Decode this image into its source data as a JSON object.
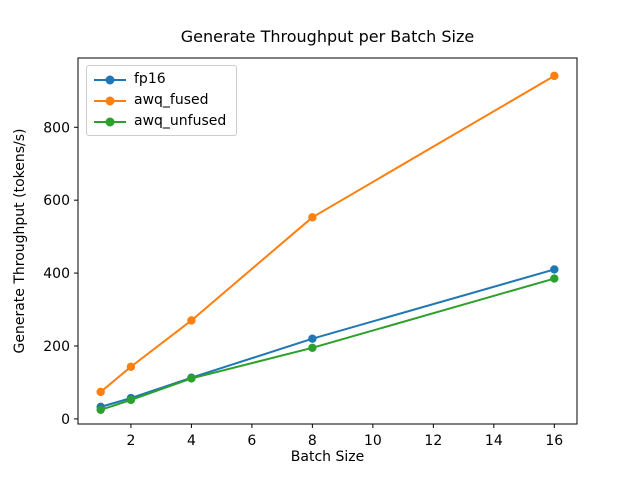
{
  "figure": {
    "background": "#ffffff"
  },
  "chart_data": {
    "type": "line",
    "title": "Generate Throughput per Batch Size",
    "xlabel": "Batch Size",
    "ylabel": "Generate Throughput (tokens/s)",
    "x": [
      1,
      2,
      4,
      8,
      16
    ],
    "series": [
      {
        "name": "fp16",
        "color": "#1f77b4",
        "values": [
          33,
          57,
          113,
          220,
          410
        ]
      },
      {
        "name": "awq_fused",
        "color": "#ff7f0e",
        "values": [
          74,
          143,
          270,
          553,
          941
        ]
      },
      {
        "name": "awq_unfused",
        "color": "#2ca02c",
        "values": [
          25,
          52,
          111,
          195,
          385
        ]
      }
    ],
    "xlim": [
      0.25,
      16.75
    ],
    "ylim": [
      -14,
      990
    ],
    "xticks": [
      2,
      4,
      6,
      8,
      10,
      12,
      14,
      16
    ],
    "yticks": [
      0,
      200,
      400,
      600,
      800
    ],
    "grid": false,
    "legend_position": "upper left",
    "marker": "o",
    "axis_color": "#000000"
  }
}
